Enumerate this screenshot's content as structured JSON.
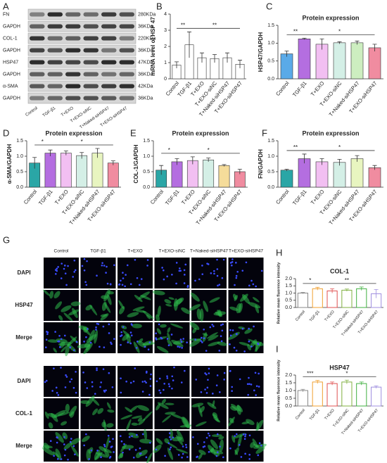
{
  "panel_labels": [
    "A",
    "B",
    "C",
    "D",
    "E",
    "F",
    "G",
    "H",
    "I"
  ],
  "blot": {
    "lanes": [
      "Control",
      "TGF-β1",
      "T+EXO",
      "T+EXO-siNC",
      "T+Naked-siHSP47",
      "T+EXO-siHSP47"
    ],
    "rows": [
      {
        "protein": "FN",
        "size": "280KDa"
      },
      {
        "protein": "GAPDH",
        "size": "36KDa"
      },
      {
        "protein": "COL-1",
        "size": "220KDa"
      },
      {
        "protein": "GAPDH",
        "size": "36KDa"
      },
      {
        "protein": "HSP47",
        "size": "47KDa"
      },
      {
        "protein": "GAPDH",
        "size": "36KDa"
      },
      {
        "protein": "α-SMA",
        "size": "42KDa"
      },
      {
        "protein": "GAPDH",
        "size": "36KDa"
      }
    ]
  },
  "microscopy": {
    "columns": [
      "Control",
      "TGF-β1",
      "T+EXO",
      "T+EXO-siNC",
      "T+Naked-siHSP47",
      "T+EXO-siHSP47"
    ],
    "rows": [
      "DAPI",
      "HSP47",
      "Merge",
      "DAPI",
      "COL-1",
      "Merge"
    ],
    "row_colors": [
      "#1a1aa0",
      "#22a022",
      "#222222",
      "#1a1aa0",
      "#22a022",
      "#222222"
    ]
  },
  "chart_data": [
    {
      "type": "bar",
      "ylabel": "mRNA level of HSP 47",
      "categories": [
        "Control",
        "TGF-β1",
        "T+EXO",
        "T+EXO-siNC",
        "T+Naked-siHSP47",
        "T+EXO-siHSP47"
      ],
      "values": [
        0.85,
        2.1,
        1.3,
        1.25,
        1.3,
        0.9
      ],
      "errors": [
        0.2,
        0.8,
        0.3,
        0.25,
        0.3,
        0.25
      ],
      "colors": [
        "#ffffff",
        "#ffffff",
        "#ffffff",
        "#ffffff",
        "#ffffff",
        "#ffffff"
      ],
      "bar_style": "filled",
      "ylim": [
        0,
        4
      ],
      "yticks": [
        0,
        1,
        2,
        3,
        4
      ],
      "annotations": [
        "**",
        "**"
      ]
    },
    {
      "type": "bar",
      "title": "Protein expression",
      "ylabel": "HSP47/GAPDH",
      "categories": [
        "Control",
        "TGF-β1",
        "T+EXO",
        "T+EXO-siNC",
        "T+Naked-siHSP47",
        "T+EXO-siHSP47"
      ],
      "values": [
        0.7,
        1.12,
        0.97,
        1.01,
        1.01,
        0.87
      ],
      "errors": [
        0.08,
        0.02,
        0.15,
        0.03,
        0.05,
        0.1
      ],
      "colors": [
        "#5aaae8",
        "#b46ee0",
        "#f2bff2",
        "#d4efe6",
        "#cdeec0",
        "#f08ca0"
      ],
      "bar_style": "filled",
      "ylim": [
        0,
        1.5
      ],
      "yticks": [
        {
          "value": 0,
          "label": "0.0"
        },
        0.5,
        {
          "value": 1,
          "label": "1.0"
        },
        1.5
      ],
      "annotations": [
        "**",
        "*"
      ]
    },
    {
      "type": "bar",
      "title": "Protein expression",
      "ylabel": "α-SMA/GAPDH",
      "categories": [
        "Control",
        "TGF-β1",
        "T+EXO",
        "T+EXO-siNC",
        "T+Naked-siHSP47",
        "T+EXO-siHSP47"
      ],
      "values": [
        0.78,
        1.1,
        1.1,
        1.02,
        1.1,
        0.78
      ],
      "errors": [
        0.18,
        0.1,
        0.07,
        0.1,
        0.15,
        0.07
      ],
      "colors": [
        "#2aa6a6",
        "#b46ee0",
        "#f2bff2",
        "#d4efe6",
        "#e8f5c0",
        "#f08ca0"
      ],
      "bar_style": "filled",
      "ylim": [
        0,
        1.5
      ],
      "yticks": [
        {
          "value": 0,
          "label": "0.0"
        },
        0.5,
        {
          "value": 1,
          "label": "1.0"
        },
        1.5
      ],
      "annotations": [
        "*",
        "*"
      ]
    },
    {
      "type": "bar",
      "title": "Protein expression",
      "ylabel": "COL-1/GAPDH",
      "categories": [
        "Control",
        "TGF-β1",
        "T+EXO",
        "T+EXO-siNC",
        "T+Naked-siHSP47",
        "T+EXO-siHSP47"
      ],
      "values": [
        0.55,
        0.82,
        0.86,
        0.88,
        0.7,
        0.5
      ],
      "errors": [
        0.15,
        0.1,
        0.12,
        0.06,
        0.03,
        0.08
      ],
      "colors": [
        "#2aa6a6",
        "#b46ee0",
        "#f2bff2",
        "#d4efe6",
        "#f5dc9a",
        "#f08ca0"
      ],
      "bar_style": "filled",
      "ylim": [
        0,
        1.5
      ],
      "yticks": [
        {
          "value": 0,
          "label": "0.0"
        },
        0.5,
        {
          "value": 1,
          "label": "1.0"
        },
        1.5
      ],
      "annotations": [
        "*",
        "*"
      ]
    },
    {
      "type": "bar",
      "title": "Protein expression",
      "ylabel": "FN/GAPDH",
      "categories": [
        "Control",
        "TGF-β1",
        "T+EXO",
        "T+EXO-siNC",
        "T+Naked-siHSP47",
        "T+EXO-siHSP47"
      ],
      "values": [
        0.55,
        0.92,
        0.82,
        0.8,
        0.92,
        0.63
      ],
      "errors": [
        0.03,
        0.15,
        0.1,
        0.1,
        0.1,
        0.07
      ],
      "colors": [
        "#2aa6a6",
        "#b46ee0",
        "#f2bff2",
        "#d4efe6",
        "#e8f5c0",
        "#f08ca0"
      ],
      "bar_style": "filled",
      "ylim": [
        0,
        1.5
      ],
      "yticks": [
        {
          "value": 0,
          "label": "0.0"
        },
        0.5,
        {
          "value": 1,
          "label": "1.0"
        },
        1.5
      ],
      "annotations": [
        "**",
        "*"
      ]
    },
    {
      "type": "bar",
      "title": "COL-1",
      "ylabel": "Relative mean fluorence intensity",
      "categories": [
        "Control",
        "TGF-β1",
        "T+EXO",
        "T+EXO-siNC",
        "T+Naked-siHSP47",
        "T+EXO-siHSP47"
      ],
      "values": [
        1.0,
        1.3,
        1.15,
        1.2,
        1.3,
        0.95
      ],
      "errors": [
        0.05,
        0.1,
        0.15,
        0.08,
        0.12,
        0.3
      ],
      "colors": [
        "#888888",
        "#f0a030",
        "#e05050",
        "#80b040",
        "#40b040",
        "#a090e0"
      ],
      "bar_style": "outline",
      "ylim": [
        0,
        2
      ],
      "yticks": [
        {
          "value": 0,
          "label": "0.0"
        },
        0.5,
        {
          "value": 1,
          "label": "1.0"
        },
        1.5,
        {
          "value": 2,
          "label": "2.0"
        }
      ],
      "annotations": [
        "*",
        "**"
      ]
    },
    {
      "type": "bar",
      "title": "HSP47",
      "ylabel": "Relative mean fluorence intensity",
      "categories": [
        "Control",
        "TGF-β1",
        "T+EXO",
        "T+EXO-siNC",
        "T+Naked-siHSP47",
        "T+EXO-siHSP47"
      ],
      "values": [
        1.0,
        1.55,
        1.45,
        1.55,
        1.45,
        1.22
      ],
      "errors": [
        0.08,
        0.1,
        0.1,
        0.12,
        0.1,
        0.08
      ],
      "colors": [
        "#888888",
        "#f0a030",
        "#e05050",
        "#80b040",
        "#40b040",
        "#a090e0"
      ],
      "bar_style": "outline",
      "ylim": [
        0,
        2
      ],
      "yticks": [
        {
          "value": 0,
          "label": "0.0"
        },
        0.5,
        {
          "value": 1,
          "label": "1.0"
        },
        1.5,
        {
          "value": 2,
          "label": "2.0"
        }
      ],
      "annotations": [
        "***",
        "*"
      ]
    }
  ]
}
